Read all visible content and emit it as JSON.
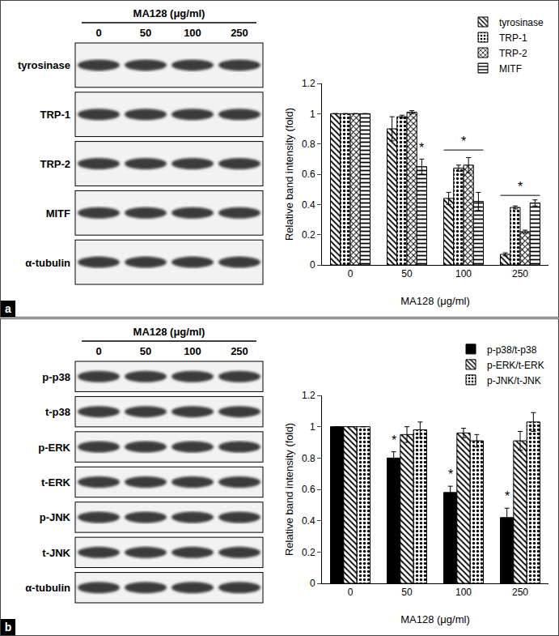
{
  "chart_data": [
    {
      "type": "bar",
      "panel": "a",
      "blot": {
        "title": "MA128 (μg/ml)",
        "lanes": [
          "0",
          "50",
          "100",
          "250"
        ],
        "rows": [
          "tyrosinase",
          "TRP-1",
          "TRP-2",
          "MITF",
          "α-tubulin"
        ]
      },
      "categories": [
        "0",
        "50",
        "100",
        "250"
      ],
      "x_label": "MA128 (μg/ml)",
      "y_label": "Relative band intensity (fold)",
      "series": [
        {
          "name": "tyrosinase",
          "marker": "hatch",
          "color": "#000000",
          "values": [
            1,
            0.9,
            0.44,
            0.07
          ],
          "errors": [
            0,
            0.08,
            0.04,
            0.01
          ]
        },
        {
          "name": "TRP-1",
          "marker": "dots",
          "color": "#000000",
          "values": [
            1,
            0.98,
            0.64,
            0.38
          ],
          "errors": [
            0,
            0.01,
            0.02,
            0.01
          ]
        },
        {
          "name": "TRP-2",
          "marker": "crosshatch",
          "color": "#000000",
          "values": [
            1,
            1.01,
            0.66,
            0.22
          ],
          "errors": [
            0,
            0.01,
            0.05,
            0.01
          ]
        },
        {
          "name": "MITF",
          "marker": "hlines",
          "color": "#000000",
          "values": [
            1,
            0.65,
            0.42,
            0.41
          ],
          "errors": [
            0,
            0.05,
            0.06,
            0.02
          ]
        }
      ],
      "ylim": [
        0,
        1.2
      ],
      "yticks": [
        0,
        0.2,
        0.4,
        0.6,
        0.8,
        1,
        1.2
      ],
      "legend": "top right",
      "annotations": [
        {
          "text": "*",
          "x": "50",
          "y": 0.72,
          "series": "MITF"
        },
        {
          "text": "*",
          "x": "100",
          "y": 0.76,
          "bracket": true
        },
        {
          "text": "*",
          "x": "250",
          "y": 0.46,
          "bracket": true
        }
      ]
    },
    {
      "type": "bar",
      "panel": "b",
      "blot": {
        "title": "MA128 (μg/ml)",
        "lanes": [
          "0",
          "50",
          "100",
          "250"
        ],
        "rows": [
          "p-p38",
          "t-p38",
          "p-ERK",
          "t-ERK",
          "p-JNK",
          "t-JNK",
          "α-tubulin"
        ]
      },
      "categories": [
        "0",
        "50",
        "100",
        "250"
      ],
      "x_label": "MA128 (μg/ml)",
      "y_label": "Relative band intensity (fold)",
      "series": [
        {
          "name": "p-p38/t-p38",
          "marker": "solid",
          "color": "#000000",
          "values": [
            1,
            0.8,
            0.58,
            0.42
          ],
          "errors": [
            0,
            0.04,
            0.04,
            0.06
          ]
        },
        {
          "name": "p-ERK/t-ERK",
          "marker": "hatch",
          "color": "#000000",
          "values": [
            1,
            0.95,
            0.96,
            0.91
          ],
          "errors": [
            0,
            0.05,
            0.03,
            0.06
          ]
        },
        {
          "name": "p-JNK/t-JNK",
          "marker": "dots",
          "color": "#000000",
          "values": [
            1,
            0.98,
            0.91,
            1.03
          ],
          "errors": [
            0,
            0.05,
            0.04,
            0.06
          ]
        }
      ],
      "ylim": [
        0,
        1.2
      ],
      "yticks": [
        0,
        0.2,
        0.4,
        0.6,
        0.8,
        1,
        1.2
      ],
      "legend": "top right",
      "annotations": [
        {
          "text": "*",
          "x": "50",
          "y": 0.86,
          "series": "p-p38/t-p38"
        },
        {
          "text": "*",
          "x": "100",
          "y": 0.64,
          "series": "p-p38/t-p38"
        },
        {
          "text": "*",
          "x": "250",
          "y": 0.5,
          "series": "p-p38/t-p38"
        }
      ]
    }
  ]
}
